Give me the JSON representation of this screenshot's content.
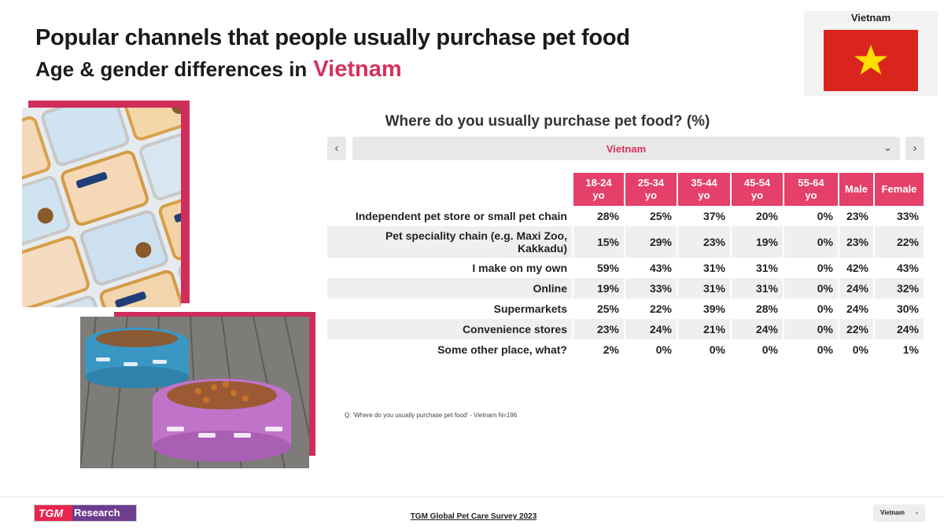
{
  "header": {
    "title_line1": "Popular channels that people usually purchase pet food",
    "title_line2": "Age & gender differences in",
    "title_country": "Vietnam"
  },
  "flag": {
    "label": "Vietnam",
    "icon": "vietnam-flag-icon",
    "colors": {
      "field": "#da251d",
      "star": "#ffde00"
    }
  },
  "question": {
    "title": "Where do you usually purchase pet food? (%)",
    "selector": {
      "value": "Vietnam",
      "prev_icon": "chevron-left-icon",
      "next_icon": "chevron-right-icon"
    }
  },
  "table": {
    "columns": [
      "18-24\nyo",
      "25-34\nyo",
      "35-44\nyo",
      "45-54\nyo",
      "55-64\nyo",
      "Male",
      "Female"
    ],
    "rows": [
      {
        "label": "Independent pet store or small pet chain",
        "values": [
          "28%",
          "25%",
          "37%",
          "20%",
          "0%",
          "23%",
          "33%"
        ]
      },
      {
        "label": "Pet speciality chain (e.g. Maxi Zoo,\nKakkadu)",
        "values": [
          "15%",
          "29%",
          "23%",
          "19%",
          "0%",
          "23%",
          "22%"
        ]
      },
      {
        "label": "I make on my own",
        "values": [
          "59%",
          "43%",
          "31%",
          "31%",
          "0%",
          "42%",
          "43%"
        ]
      },
      {
        "label": "Online",
        "values": [
          "19%",
          "33%",
          "31%",
          "31%",
          "0%",
          "24%",
          "32%"
        ]
      },
      {
        "label": "Supermarkets",
        "values": [
          "25%",
          "22%",
          "39%",
          "28%",
          "0%",
          "24%",
          "30%"
        ]
      },
      {
        "label": "Convenience stores",
        "values": [
          "23%",
          "24%",
          "21%",
          "24%",
          "0%",
          "22%",
          "24%"
        ]
      },
      {
        "label": "Some other place, what?",
        "values": [
          "2%",
          "0%",
          "0%",
          "0%",
          "0%",
          "0%",
          "1%"
        ]
      }
    ]
  },
  "footnote": "Q: 'Where do you usually purchase pet food' - Vietnam N=196",
  "footer": {
    "logo_tgm": "TGM",
    "logo_research": "Research",
    "survey_link": "TGM Global Pet Care Survey 2023",
    "select_value": "Vietnam"
  },
  "colors": {
    "accent": "#e4406a",
    "title_accent": "#d6325e",
    "frame": "#cf2d5b"
  }
}
